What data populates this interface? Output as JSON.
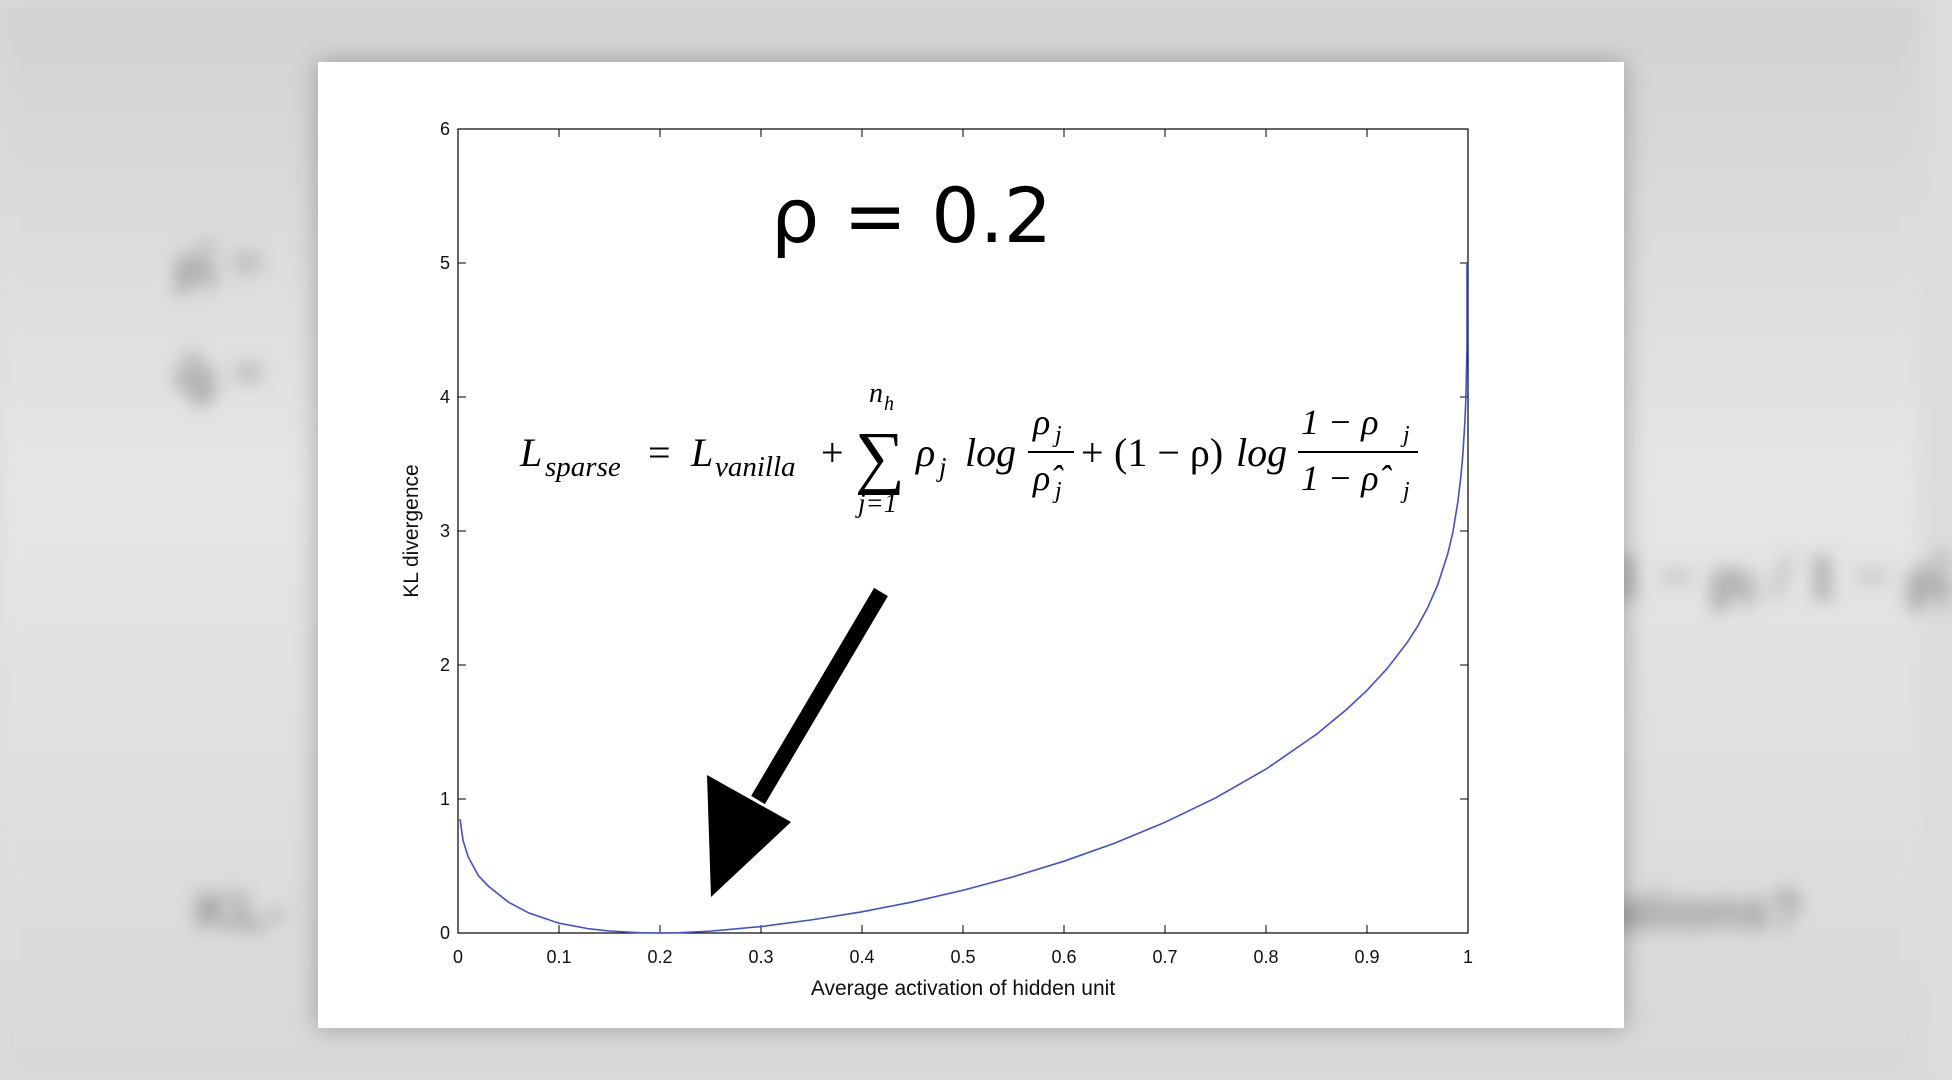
{
  "background_text": {
    "left_line_1": "ρ̂ⱼ =",
    "left_line_2": "q̂ⱼ =",
    "right_fraction": "1 − ρⱼ / 1 − ρ̂ⱼ",
    "bottom_left": "KL-",
    "bottom_right": "ations?"
  },
  "annotation": {
    "rho_label": "ρ = 0.2",
    "equation": {
      "lhs": "L",
      "lhs_sub": "sparse",
      "equals": "=",
      "vanilla": "L",
      "vanilla_sub": "vanilla",
      "plus1": "+",
      "sum_symbol": "∑",
      "sum_upper": "n",
      "sum_upper_sub": "h",
      "sum_lower": "j=1",
      "rho_j": "ρ",
      "j": "j",
      "log1": "log",
      "frac1_num": "ρ",
      "frac1_den": "ρ̂",
      "plus2": "+",
      "one_minus_rho": "(1 − ρ)",
      "log2": "log",
      "frac2_num": "1 − ρ",
      "frac2_den": "1 − ρ̂"
    }
  },
  "colors": {
    "curve": "#3f4fd6",
    "axis": "#000000",
    "arrow": "#000000",
    "card": "#ffffff"
  },
  "chart_data": {
    "type": "line",
    "title": "",
    "xlabel": "Average activation of hidden unit",
    "ylabel": "KL divergence",
    "xlim": [
      0,
      1
    ],
    "ylim": [
      0,
      6
    ],
    "xticks": [
      0,
      0.1,
      0.2,
      0.3,
      0.4,
      0.5,
      0.6,
      0.7,
      0.8,
      0.9,
      1
    ],
    "xtick_labels": [
      "0",
      "0.1",
      "0.2",
      "0.3",
      "0.4",
      "0.5",
      "0.6",
      "0.7",
      "0.8",
      "0.9",
      "1"
    ],
    "yticks": [
      0,
      1,
      2,
      3,
      4,
      5,
      6
    ],
    "ytick_labels": [
      "0",
      "1",
      "2",
      "3",
      "4",
      "5",
      "6"
    ],
    "grid": false,
    "series": [
      {
        "x": [
          0.002,
          0.005,
          0.01,
          0.02,
          0.03,
          0.05,
          0.07,
          0.1,
          0.13,
          0.15,
          0.18,
          0.2,
          0.22,
          0.25,
          0.3,
          0.35,
          0.4,
          0.45,
          0.5,
          0.55,
          0.6,
          0.65,
          0.7,
          0.75,
          0.8,
          0.85,
          0.88,
          0.9,
          0.92,
          0.94,
          0.95,
          0.96,
          0.97,
          0.98,
          0.985,
          0.99,
          0.993,
          0.995,
          0.997,
          0.998,
          0.999
        ],
        "y": [
          0.85,
          0.69,
          0.57,
          0.43,
          0.35,
          0.23,
          0.15,
          0.073,
          0.031,
          0.015,
          0.002,
          0,
          0.002,
          0.014,
          0.048,
          0.098,
          0.158,
          0.232,
          0.319,
          0.42,
          0.536,
          0.67,
          0.826,
          1.008,
          1.223,
          1.483,
          1.67,
          1.811,
          1.974,
          2.17,
          2.288,
          2.426,
          2.598,
          2.831,
          2.99,
          3.22,
          3.41,
          3.58,
          3.83,
          4.01,
          4.37
        ]
      }
    ]
  }
}
